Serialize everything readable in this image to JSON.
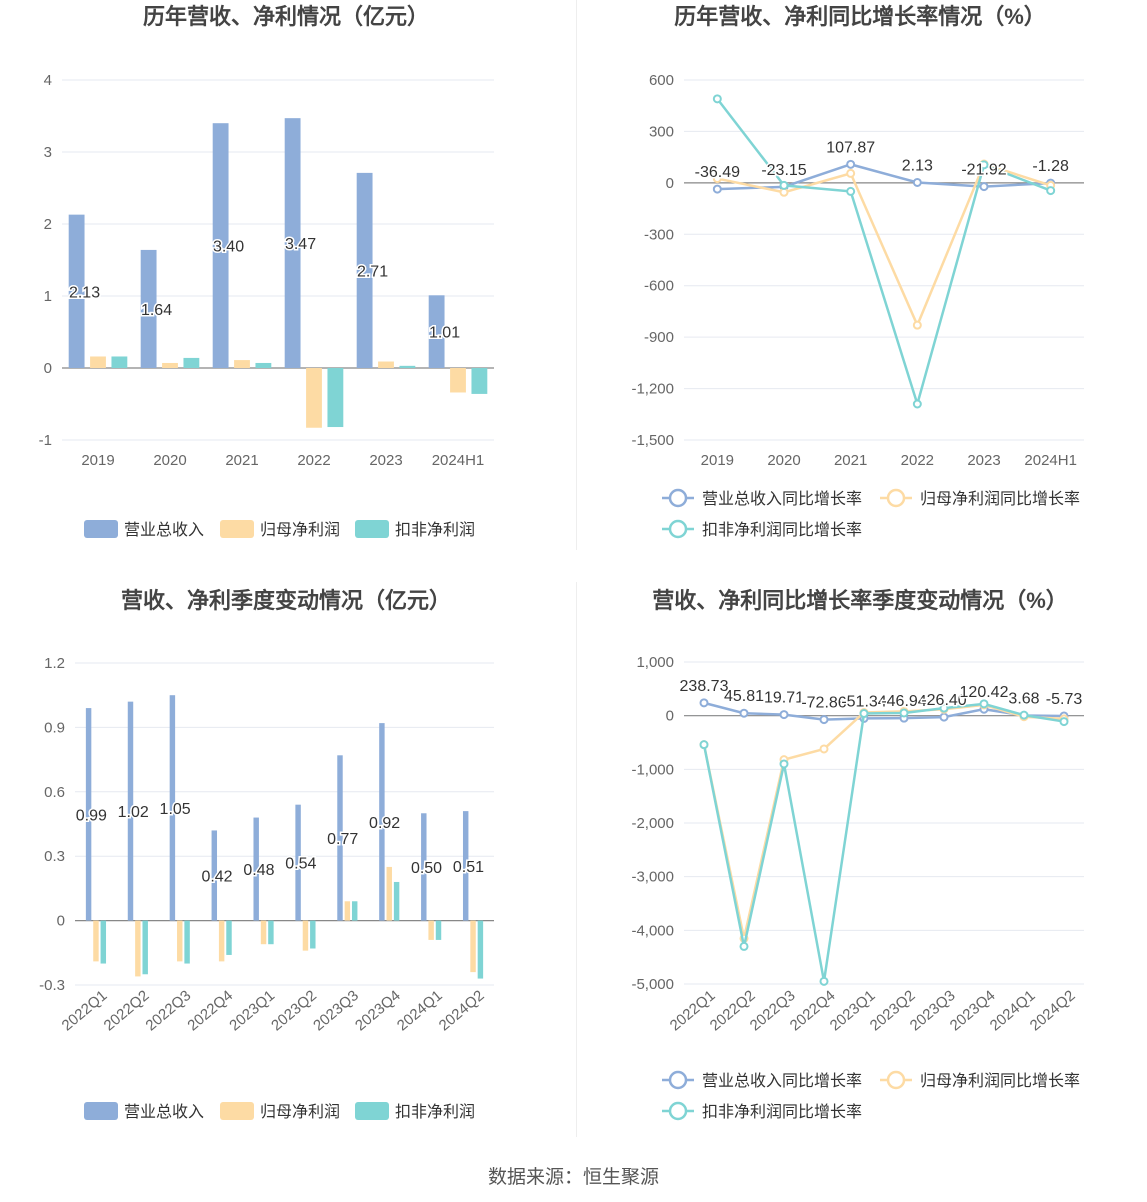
{
  "source_note": "数据来源：恒生聚源",
  "colors": {
    "revenue": "#8eadd9",
    "net_profit": "#fddba4",
    "deducted_profit": "#7fd4d4",
    "axis": "#666666",
    "grid": "#e6e9f0"
  },
  "chart_data": [
    {
      "type": "bar",
      "title": "历年营收、净利情况（亿元）",
      "categories": [
        "2019",
        "2020",
        "2021",
        "2022",
        "2023",
        "2024H1"
      ],
      "series": [
        {
          "name": "营业总收入",
          "values": [
            2.13,
            1.64,
            3.4,
            3.47,
            2.71,
            1.01
          ]
        },
        {
          "name": "归母净利润",
          "values": [
            0.16,
            0.07,
            0.11,
            -0.83,
            0.09,
            -0.34
          ]
        },
        {
          "name": "扣非净利润",
          "values": [
            0.16,
            0.14,
            0.07,
            -0.82,
            0.03,
            -0.36
          ]
        }
      ],
      "value_labels": [
        "2.13",
        "1.64",
        "3.40",
        "3.47",
        "2.71",
        "1.01"
      ],
      "ylim": [
        -1,
        4
      ],
      "yticks": [
        "4",
        "3",
        "2",
        "1",
        "0",
        "-1"
      ],
      "legend": "bottom"
    },
    {
      "type": "line",
      "title": "历年营收、净利同比增长率情况（%）",
      "categories": [
        "2019",
        "2020",
        "2021",
        "2022",
        "2023",
        "2024H1"
      ],
      "series": [
        {
          "name": "营业总收入同比增长率",
          "values": [
            -36.49,
            -23.15,
            107.87,
            2.13,
            -21.92,
            -1.28
          ]
        },
        {
          "name": "归母净利润同比增长率",
          "values": [
            25,
            -55,
            55,
            -830,
            110,
            -15
          ]
        },
        {
          "name": "扣非净利润同比增长率",
          "values": [
            490,
            -15,
            -50,
            -1290,
            105,
            -45
          ]
        }
      ],
      "value_labels": [
        "-36.49",
        "-23.15",
        "107.87",
        "2.13",
        "-21.92",
        "-1.28"
      ],
      "ylim": [
        -1500,
        600
      ],
      "yticks": [
        "600",
        "300",
        "0",
        "-300",
        "-600",
        "-900",
        "-1,200",
        "-1,500"
      ],
      "legend": "bottom"
    },
    {
      "type": "bar",
      "title": "营收、净利季度变动情况（亿元）",
      "categories": [
        "2022Q1",
        "2022Q2",
        "2022Q3",
        "2022Q4",
        "2023Q1",
        "2023Q2",
        "2023Q3",
        "2023Q4",
        "2024Q1",
        "2024Q2"
      ],
      "series": [
        {
          "name": "营业总收入",
          "values": [
            0.99,
            1.02,
            1.05,
            0.42,
            0.48,
            0.54,
            0.77,
            0.92,
            0.5,
            0.51
          ]
        },
        {
          "name": "归母净利润",
          "values": [
            -0.19,
            -0.26,
            -0.19,
            -0.19,
            -0.11,
            -0.14,
            0.09,
            0.25,
            -0.09,
            -0.24
          ]
        },
        {
          "name": "扣非净利润",
          "values": [
            -0.2,
            -0.25,
            -0.2,
            -0.16,
            -0.11,
            -0.13,
            0.09,
            0.18,
            -0.09,
            -0.27
          ]
        }
      ],
      "value_labels": [
        "0.99",
        "1.02",
        "1.05",
        "0.42",
        "0.48",
        "0.54",
        "0.77",
        "0.92",
        "0.50",
        "0.51"
      ],
      "ylim": [
        -0.3,
        1.2
      ],
      "yticks": [
        "1.2",
        "0.9",
        "0.6",
        "0.3",
        "0",
        "-0.3"
      ],
      "legend": "bottom"
    },
    {
      "type": "line",
      "title": "营收、净利同比增长率季度变动情况（%）",
      "categories": [
        "2022Q1",
        "2022Q2",
        "2022Q3",
        "2022Q4",
        "2023Q1",
        "2023Q2",
        "2023Q3",
        "2023Q4",
        "2024Q1",
        "2024Q2"
      ],
      "series": [
        {
          "name": "营业总收入同比增长率",
          "values": [
            238.73,
            45.81,
            19.71,
            -72.86,
            -51.34,
            -46.94,
            -26.4,
            120.42,
            3.68,
            -5.73
          ]
        },
        {
          "name": "归母净利润同比增长率",
          "values": [
            -540,
            -4150,
            -820,
            -620,
            60,
            80,
            120,
            200,
            -20,
            -60
          ]
        },
        {
          "name": "扣非净利润同比增长率",
          "values": [
            -540,
            -4300,
            -900,
            -4950,
            40,
            50,
            140,
            220,
            10,
            -110
          ]
        }
      ],
      "value_labels": [
        "238.73",
        "45.81",
        "19.71",
        "-72.86",
        "-51.34",
        "-46.94",
        "-26.40",
        "120.42",
        "3.68",
        "-5.73"
      ],
      "ylim": [
        -5000,
        1000
      ],
      "yticks": [
        "1,000",
        "0",
        "-1,000",
        "-2,000",
        "-3,000",
        "-4,000",
        "-5,000"
      ],
      "legend": "bottom"
    }
  ]
}
